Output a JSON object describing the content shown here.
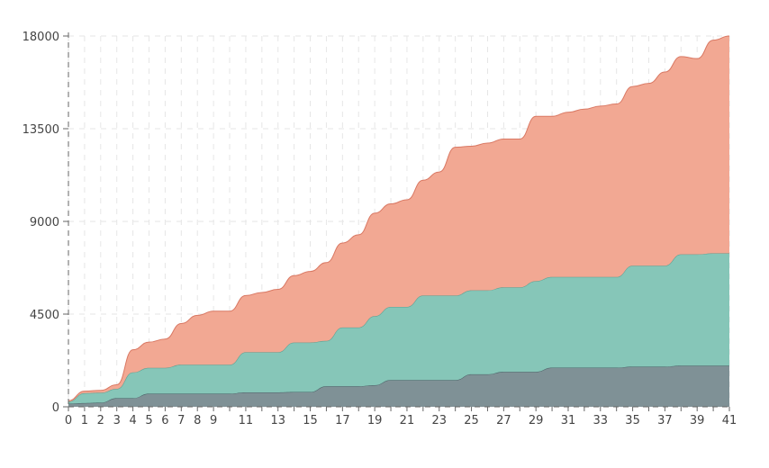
{
  "chart_data": {
    "type": "area",
    "stacked": true,
    "x": [
      0,
      1,
      2,
      3,
      4,
      5,
      6,
      7,
      8,
      9,
      10,
      11,
      12,
      13,
      14,
      15,
      16,
      17,
      18,
      19,
      20,
      21,
      22,
      23,
      24,
      25,
      26,
      27,
      28,
      29,
      30,
      31,
      32,
      33,
      34,
      35,
      36,
      37,
      38,
      39,
      40,
      41
    ],
    "x_tick_labels": [
      "0",
      "1",
      "2",
      "3",
      "4",
      "5",
      "6",
      "7",
      "8",
      "9",
      "11",
      "13",
      "15",
      "17",
      "19",
      "21",
      "23",
      "25",
      "27",
      "29",
      "31",
      "33",
      "35",
      "37",
      "39",
      "41"
    ],
    "y_tick_labels": [
      "0",
      "4500",
      "9000",
      "13500",
      "18000"
    ],
    "ylim": [
      0,
      18000
    ],
    "xlim": [
      0,
      41
    ],
    "grid": true,
    "series": [
      {
        "color": "#7f9196",
        "stroke": "#4a6166",
        "values": [
          150,
          180,
          200,
          420,
          420,
          640,
          640,
          640,
          640,
          640,
          640,
          700,
          700,
          700,
          720,
          720,
          1000,
          1000,
          1000,
          1050,
          1300,
          1300,
          1300,
          1300,
          1300,
          1580,
          1580,
          1700,
          1700,
          1700,
          1900,
          1900,
          1900,
          1900,
          1900,
          1950,
          1950,
          1950,
          2000,
          2000,
          2000,
          2000
        ]
      },
      {
        "color": "#86c6b8",
        "stroke": "#5a9e90",
        "values": [
          100,
          480,
          480,
          450,
          1250,
          1250,
          1250,
          1400,
          1400,
          1400,
          1400,
          1950,
          1950,
          1950,
          2400,
          2400,
          2200,
          2850,
          2850,
          3350,
          3550,
          3550,
          4100,
          4100,
          4100,
          4070,
          4070,
          4100,
          4100,
          4400,
          4400,
          4400,
          4400,
          4400,
          4400,
          4900,
          4900,
          4900,
          5400,
          5400,
          5450,
          5450
        ]
      },
      {
        "color": "#f2a893",
        "stroke": "#d97863",
        "values": [
          50,
          100,
          120,
          200,
          1100,
          1250,
          1400,
          2000,
          2400,
          2600,
          2600,
          2750,
          2900,
          3050,
          3250,
          3450,
          3800,
          4100,
          4500,
          5000,
          5000,
          5200,
          5600,
          6000,
          7200,
          7000,
          7150,
          7200,
          7200,
          8000,
          7800,
          8000,
          8150,
          8300,
          8400,
          8700,
          8850,
          9400,
          9600,
          9500,
          10350,
          10550
        ]
      }
    ]
  }
}
